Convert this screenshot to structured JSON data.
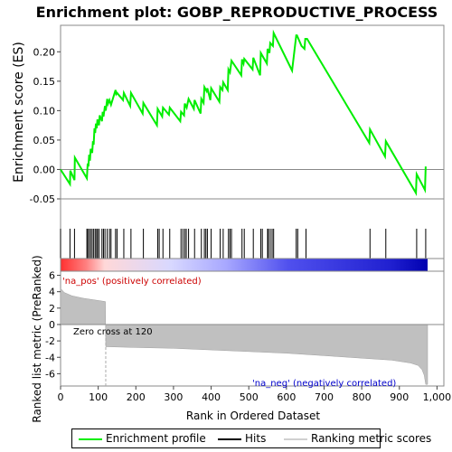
{
  "chart_data": {
    "type": "line",
    "title": "Enrichment plot: GOBP_REPRODUCTIVE_PROCESS",
    "top_panel": {
      "ylabel": "Enrichment score (ES)",
      "ylim": [
        -0.05,
        0.245
      ],
      "yticks": [
        -0.05,
        0.0,
        0.05,
        0.1,
        0.15,
        0.2
      ],
      "ytick_labels": [
        "-0.05",
        "0.00",
        "0.05",
        "0.10",
        "0.15",
        "0.20"
      ],
      "series": [
        {
          "name": "Enrichment profile",
          "color": "#00ee00",
          "x": [
            0,
            25,
            26,
            37,
            38,
            70,
            72,
            74,
            76,
            78,
            80,
            84,
            86,
            88,
            90,
            92,
            94,
            96,
            98,
            102,
            104,
            110,
            112,
            114,
            118,
            120,
            124,
            126,
            130,
            134,
            146,
            148,
            150,
            166,
            168,
            185,
            187,
            218,
            220,
            256,
            258,
            270,
            272,
            288,
            290,
            318,
            320,
            328,
            330,
            335,
            340,
            354,
            356,
            372,
            374,
            380,
            382,
            388,
            390,
            398,
            400,
            422,
            424,
            430,
            432,
            444,
            446,
            450,
            454,
            480,
            482,
            486,
            488,
            510,
            512,
            530,
            532,
            548,
            550,
            555,
            557,
            564,
            566,
            615,
            626,
            628,
            640,
            648,
            650,
            652,
            655,
            820,
            822,
            862,
            864,
            944,
            946,
            968,
            970
          ],
          "y": [
            0.0,
            -0.025,
            -0.002,
            -0.018,
            0.02,
            -0.015,
            0.01,
            0.005,
            0.025,
            0.015,
            0.035,
            0.028,
            0.048,
            0.042,
            0.07,
            0.062,
            0.078,
            0.07,
            0.085,
            0.075,
            0.092,
            0.082,
            0.098,
            0.09,
            0.108,
            0.1,
            0.12,
            0.112,
            0.118,
            0.11,
            0.135,
            0.128,
            0.13,
            0.118,
            0.13,
            0.108,
            0.13,
            0.095,
            0.113,
            0.075,
            0.103,
            0.09,
            0.105,
            0.093,
            0.105,
            0.082,
            0.098,
            0.092,
            0.112,
            0.105,
            0.12,
            0.103,
            0.118,
            0.095,
            0.12,
            0.113,
            0.14,
            0.133,
            0.138,
            0.118,
            0.138,
            0.115,
            0.14,
            0.135,
            0.148,
            0.135,
            0.17,
            0.165,
            0.185,
            0.16,
            0.187,
            0.18,
            0.188,
            0.17,
            0.19,
            0.16,
            0.198,
            0.18,
            0.205,
            0.198,
            0.215,
            0.21,
            0.232,
            0.168,
            0.228,
            0.228,
            0.21,
            0.205,
            0.222,
            0.222,
            0.222,
            0.045,
            0.068,
            0.022,
            0.048,
            -0.04,
            -0.008,
            -0.035,
            0.005
          ]
        }
      ]
    },
    "hits": {
      "name": "Hits",
      "positions": [
        0,
        25,
        37,
        70,
        72,
        76,
        80,
        84,
        88,
        92,
        96,
        98,
        102,
        110,
        114,
        118,
        124,
        130,
        134,
        146,
        150,
        168,
        187,
        220,
        258,
        262,
        272,
        290,
        320,
        325,
        330,
        334,
        340,
        356,
        374,
        382,
        386,
        390,
        400,
        424,
        432,
        446,
        450,
        454,
        482,
        488,
        512,
        532,
        536,
        550,
        552,
        557,
        562,
        566,
        626,
        630,
        652,
        822,
        864,
        946,
        970
      ]
    },
    "ranked_list": {
      "name": "Ranking metric scores",
      "ylabel": "Ranked list metric (PreRanked)",
      "xlabel": "Rank in Ordered Dataset",
      "ylim": [
        -7.5,
        6.5
      ],
      "yticks": [
        -6,
        -4,
        -2,
        0,
        2,
        4,
        6
      ],
      "ytick_labels": [
        "-6",
        "-4",
        "-2",
        "0",
        "2",
        "4",
        "6"
      ],
      "xlim": [
        0,
        1000
      ],
      "xticks": [
        0,
        100,
        200,
        300,
        400,
        500,
        600,
        700,
        800,
        900,
        1000
      ],
      "xtick_labels": [
        "0",
        "100",
        "200",
        "300",
        "400",
        "500",
        "600",
        "700",
        "800",
        "900",
        "1,000"
      ],
      "n_genes": 975,
      "zero_cross": 120,
      "profile_x": [
        0,
        10,
        30,
        60,
        119,
        120,
        200,
        300,
        400,
        500,
        600,
        700,
        800,
        880,
        930,
        950,
        960,
        966,
        970,
        975
      ],
      "profile_y": [
        4.4,
        3.9,
        3.5,
        3.2,
        2.8,
        -2.7,
        -2.8,
        -2.9,
        -3.1,
        -3.3,
        -3.5,
        -3.8,
        -4.1,
        -4.35,
        -4.7,
        -5.0,
        -5.5,
        -6.2,
        -7.3,
        -7.3
      ],
      "annotations": {
        "pos": "'na_pos' (positively correlated)",
        "neg": "'na_neg' (negatively correlated)",
        "zero_cross": "Zero cross at 120"
      }
    },
    "legend": [
      "Enrichment profile",
      "Hits",
      "Ranking metric scores"
    ]
  },
  "colors": {
    "profile": "#00ee00",
    "hits": "#000000",
    "ranking": "#c0c0c0",
    "pos_text": "#cc0000",
    "neg_text": "#0000cc"
  }
}
